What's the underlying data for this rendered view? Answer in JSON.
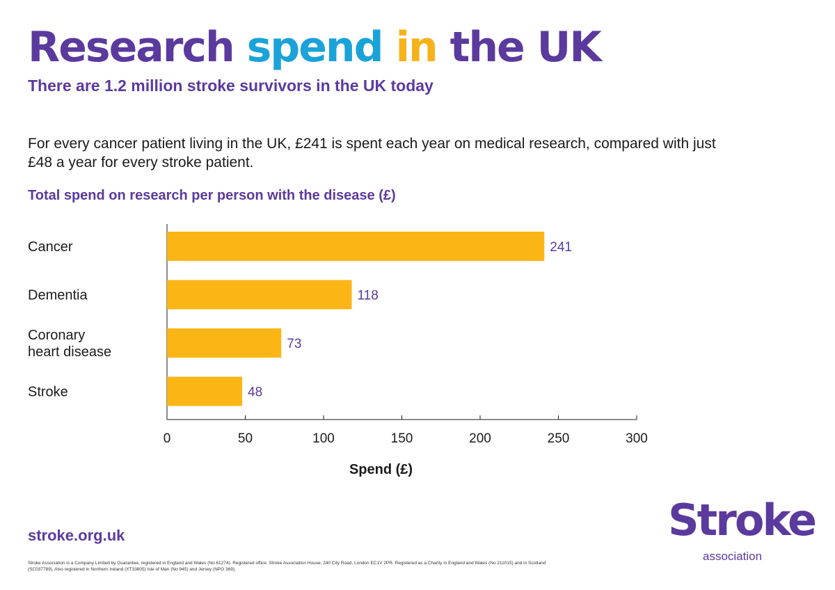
{
  "header": {
    "headline_words": [
      "Research",
      "spend",
      "in",
      "the UK"
    ],
    "subtitle": "There are 1.2 million stroke survivors in the UK today"
  },
  "intro_text": "For every cancer patient living in the UK, £241 is spent each year on medical research, compared with just £48 a year for every stroke patient.",
  "chart_data": {
    "type": "bar",
    "orientation": "horizontal",
    "title": "Total spend on research per person with the disease (£)",
    "categories": [
      [
        "Cancer"
      ],
      [
        "Dementia"
      ],
      [
        "Coronary",
        "heart disease"
      ],
      [
        "Stroke"
      ]
    ],
    "values": [
      241,
      118,
      73,
      48
    ],
    "xlabel": "Spend (£)",
    "ylabel": "",
    "xlim": [
      0,
      300
    ],
    "xticks": [
      0,
      50,
      100,
      150,
      200,
      250,
      300
    ],
    "grid": false,
    "legend": "none",
    "bar_color": "#fbb615",
    "value_label_color": "#5b3a9e"
  },
  "footer": {
    "url": "stroke.org.uk",
    "legal": "Stroke Association is a Company Limited by Guarantee, registered in England and Wales (No 61274). Registered office: Stroke Association House, 240 City Road, London EC1V 2PR. Registered as a Charity in England and Wales (No 211015) and in Scotland (SC037789). Also registered in Northern Ireland (XT33805) Isle of Man (No 945) and Jersey (NPO 369)."
  },
  "logo": {
    "word": "Stroke",
    "sub": "association"
  },
  "colors": {
    "brand_purple": "#5b3a9e",
    "accent_blue": "#1aa3d9",
    "accent_yellow": "#f7b21a",
    "bar_yellow": "#fbb615"
  }
}
